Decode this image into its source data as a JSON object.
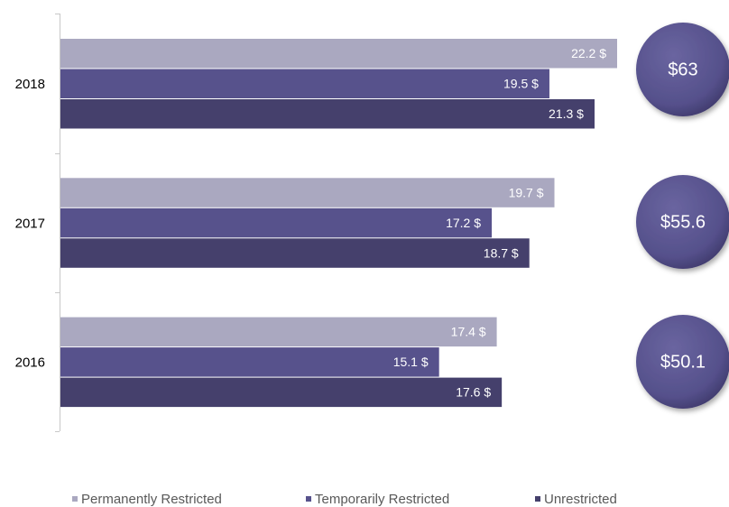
{
  "chart_data": {
    "type": "bar",
    "orientation": "horizontal",
    "categories": [
      "2018",
      "2017",
      "2016"
    ],
    "series": [
      {
        "name": "Permanently Restricted",
        "color": "#aaa8c0",
        "values": [
          22.2,
          19.7,
          17.4
        ],
        "value_labels": [
          "22.2 $",
          "19.7 $",
          "17.4 $"
        ]
      },
      {
        "name": "Temporarily Restricted",
        "color": "#57528c",
        "values": [
          19.5,
          17.2,
          15.1
        ],
        "value_labels": [
          "19.5 $",
          "17.2 $",
          "15.1 $"
        ]
      },
      {
        "name": "Unrestricted",
        "color": "#45406c",
        "values": [
          21.3,
          18.7,
          17.6
        ],
        "value_labels": [
          "21.3 $",
          "18.7 $",
          "17.6 $"
        ]
      }
    ],
    "annotations": [
      "$63",
      "$55.6",
      "$50.1"
    ],
    "legend": "bottom"
  }
}
